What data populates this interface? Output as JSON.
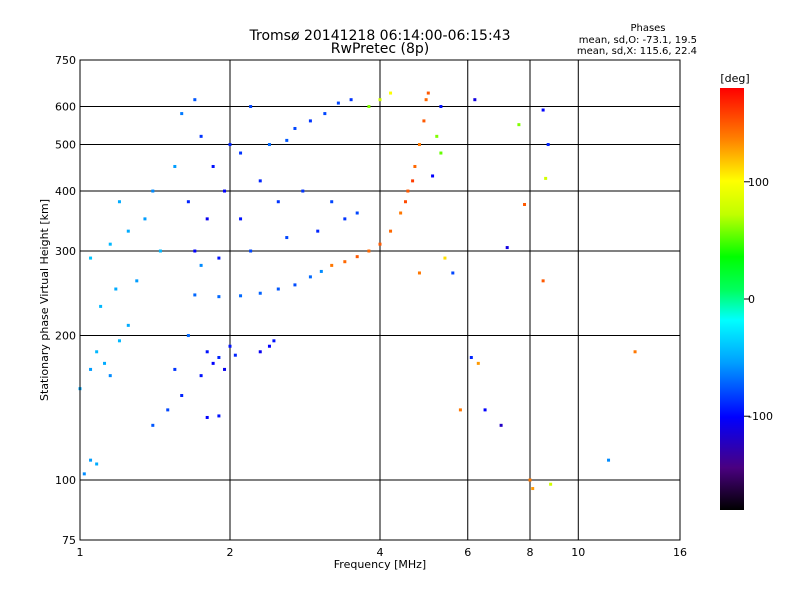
{
  "chart_data": {
    "type": "scatter",
    "title": "Tromsø 20141218 06:14:00-06:15:43",
    "subtitle": "RwPretec (8p)",
    "xlabel": "Frequency [MHz]",
    "ylabel": "Stationary phase Virtual Height [km]",
    "xscale": "log",
    "yscale": "log",
    "xlim": [
      1,
      16
    ],
    "ylim": [
      75,
      750
    ],
    "x_ticks": [
      1,
      2,
      4,
      6,
      8,
      10,
      16
    ],
    "y_ticks": [
      75,
      100,
      200,
      300,
      400,
      500,
      600,
      750
    ],
    "grid": true,
    "legend_title": "Phases",
    "legend_lines": [
      "mean, sd,O: -73.1, 19.5",
      "mean, sd,X: 115.6, 22.4"
    ],
    "colorbar": {
      "unit": "[deg]",
      "min": -180,
      "max": 180,
      "ticks": [
        100,
        0,
        -100
      ],
      "placement": "right"
    },
    "series": [
      {
        "description": "phase-coloured echoes (frequency MHz, height km, phase deg)",
        "points": [
          [
            1.02,
            103,
            -60
          ],
          [
            1.05,
            110,
            -55
          ],
          [
            1.08,
            108,
            -50
          ],
          [
            1.0,
            155,
            -50
          ],
          [
            1.05,
            170,
            -55
          ],
          [
            1.08,
            185,
            -45
          ],
          [
            1.12,
            175,
            -50
          ],
          [
            1.15,
            165,
            -60
          ],
          [
            1.2,
            195,
            -45
          ],
          [
            1.25,
            210,
            -50
          ],
          [
            1.1,
            230,
            -45
          ],
          [
            1.18,
            250,
            -50
          ],
          [
            1.3,
            260,
            -55
          ],
          [
            1.05,
            290,
            -40
          ],
          [
            1.15,
            310,
            -45
          ],
          [
            1.25,
            330,
            -50
          ],
          [
            1.35,
            350,
            -55
          ],
          [
            1.45,
            300,
            -45
          ],
          [
            1.2,
            380,
            -50
          ],
          [
            1.4,
            400,
            -60
          ],
          [
            1.55,
            450,
            -55
          ],
          [
            1.6,
            580,
            -65
          ],
          [
            1.7,
            620,
            -75
          ],
          [
            1.75,
            280,
            -60
          ],
          [
            1.65,
            200,
            -70
          ],
          [
            1.8,
            185,
            -95
          ],
          [
            1.9,
            180,
            -90
          ],
          [
            2.0,
            190,
            -95
          ],
          [
            1.85,
            175,
            -100
          ],
          [
            1.95,
            170,
            -105
          ],
          [
            1.75,
            165,
            -95
          ],
          [
            2.05,
            182,
            -90
          ],
          [
            1.9,
            136,
            -95
          ],
          [
            1.8,
            135,
            -100
          ],
          [
            1.6,
            150,
            -90
          ],
          [
            1.5,
            140,
            -80
          ],
          [
            1.4,
            130,
            -75
          ],
          [
            1.55,
            170,
            -85
          ],
          [
            1.7,
            243,
            -70
          ],
          [
            1.9,
            241,
            -70
          ],
          [
            2.1,
            242,
            -70
          ],
          [
            2.3,
            245,
            -72
          ],
          [
            2.5,
            250,
            -75
          ],
          [
            2.7,
            255,
            -78
          ],
          [
            2.9,
            265,
            -70
          ],
          [
            3.05,
            272,
            -60
          ],
          [
            3.2,
            280,
            140
          ],
          [
            3.4,
            285,
            145
          ],
          [
            3.6,
            292,
            150
          ],
          [
            3.8,
            300,
            145
          ],
          [
            4.0,
            310,
            150
          ],
          [
            4.2,
            330,
            145
          ],
          [
            4.4,
            360,
            140
          ],
          [
            4.55,
            400,
            150
          ],
          [
            4.7,
            450,
            145
          ],
          [
            4.8,
            500,
            140
          ],
          [
            4.9,
            560,
            150
          ],
          [
            4.95,
            620,
            145
          ],
          [
            4.5,
            380,
            155
          ],
          [
            4.65,
            420,
            160
          ],
          [
            3.8,
            600,
            60
          ],
          [
            4.0,
            620,
            80
          ],
          [
            4.2,
            640,
            100
          ],
          [
            3.3,
            610,
            -80
          ],
          [
            3.5,
            620,
            -85
          ],
          [
            3.1,
            580,
            -80
          ],
          [
            2.9,
            560,
            -85
          ],
          [
            2.7,
            540,
            -80
          ],
          [
            3.6,
            360,
            -80
          ],
          [
            3.4,
            350,
            -85
          ],
          [
            3.2,
            380,
            -80
          ],
          [
            3.0,
            330,
            -90
          ],
          [
            2.8,
            400,
            -85
          ],
          [
            2.6,
            320,
            -80
          ],
          [
            2.5,
            380,
            -85
          ],
          [
            2.3,
            420,
            -90
          ],
          [
            2.2,
            300,
            -80
          ],
          [
            2.1,
            350,
            -95
          ],
          [
            1.95,
            400,
            -100
          ],
          [
            1.85,
            450,
            -95
          ],
          [
            1.8,
            350,
            -105
          ],
          [
            1.7,
            300,
            -100
          ],
          [
            1.9,
            290,
            -95
          ],
          [
            2.0,
            500,
            -90
          ],
          [
            2.1,
            480,
            -85
          ],
          [
            2.2,
            600,
            -80
          ],
          [
            1.65,
            380,
            -90
          ],
          [
            1.75,
            520,
            -85
          ],
          [
            2.4,
            500,
            -70
          ],
          [
            2.6,
            510,
            -75
          ],
          [
            5.2,
            520,
            60
          ],
          [
            5.3,
            480,
            55
          ],
          [
            5.1,
            430,
            -100
          ],
          [
            5.3,
            600,
            -95
          ],
          [
            5.4,
            290,
            110
          ],
          [
            5.6,
            270,
            -80
          ],
          [
            5.8,
            140,
            140
          ],
          [
            6.1,
            180,
            -90
          ],
          [
            6.3,
            175,
            130
          ],
          [
            6.5,
            140,
            -100
          ],
          [
            7.0,
            130,
            -120
          ],
          [
            7.2,
            305,
            -110
          ],
          [
            7.8,
            375,
            150
          ],
          [
            8.0,
            100,
            140
          ],
          [
            8.1,
            96,
            130
          ],
          [
            8.5,
            260,
            150
          ],
          [
            8.7,
            500,
            -90
          ],
          [
            8.5,
            590,
            -100
          ],
          [
            8.6,
            425,
            80
          ],
          [
            8.8,
            98,
            80
          ],
          [
            7.6,
            550,
            60
          ],
          [
            6.2,
            620,
            -110
          ],
          [
            5.0,
            640,
            150
          ],
          [
            4.8,
            270,
            140
          ],
          [
            13.0,
            185,
            140
          ],
          [
            11.5,
            110,
            -60
          ],
          [
            2.4,
            190,
            -100
          ],
          [
            2.3,
            185,
            -105
          ],
          [
            2.45,
            195,
            -95
          ]
        ]
      }
    ]
  }
}
